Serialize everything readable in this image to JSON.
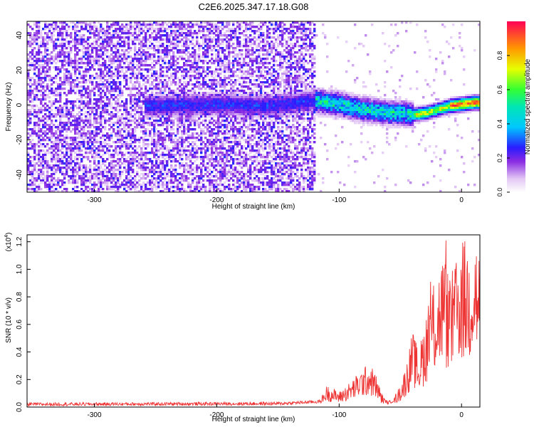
{
  "title": "C2E6.2025.347.17.18.G08",
  "chart_data": [
    {
      "type": "heatmap",
      "xlabel": "Height of straight line (km)",
      "ylabel": "Frequency (Hz)",
      "xlim": [
        -355,
        15
      ],
      "ylim": [
        -50,
        48
      ],
      "xticks": [
        -300,
        -200,
        -100,
        0
      ],
      "yticks": [
        -40,
        -20,
        0,
        20,
        40
      ],
      "colorbar": {
        "label": "Normalized spectral amplitude",
        "range": [
          0,
          1
        ],
        "ticks": [
          "0.0",
          "0.2",
          "0.4",
          "0.6",
          "0.8"
        ]
      },
      "ridge": {
        "x": [
          -250,
          -200,
          -160,
          -120,
          -110,
          -100,
          -90,
          -80,
          -70,
          -60,
          -50,
          -40,
          -30,
          -20,
          -10,
          0,
          10
        ],
        "y": [
          0,
          1,
          0,
          3,
          2,
          1,
          -1,
          -2,
          -3,
          -4,
          -4,
          -5,
          -4,
          -2,
          0,
          1,
          2
        ]
      }
    },
    {
      "type": "line",
      "xlabel": "Height of straight line (km)",
      "ylabel": "SNR (10 * v/v)",
      "scale_label": "(x10",
      "scale_exp": "4",
      "xlim": [
        -355,
        15
      ],
      "ylim": [
        0,
        1.25
      ],
      "xticks": [
        -300,
        -200,
        -100,
        0
      ],
      "yticks": [
        "0.0",
        "0.2",
        "0.4",
        "0.6",
        "0.8",
        "1.0",
        "1.2"
      ],
      "series": [
        {
          "color": "#ee3333",
          "x": [
            -355,
            -150,
            -115,
            -110,
            -100,
            -90,
            -80,
            -75,
            -70,
            -65,
            -60,
            -55,
            -50,
            -45,
            -40,
            -35,
            -30,
            -25,
            -20,
            -15,
            -10,
            -5,
            0,
            5,
            10,
            15
          ],
          "y": [
            0.02,
            0.025,
            0.04,
            0.1,
            0.07,
            0.12,
            0.18,
            0.2,
            0.15,
            0.06,
            0.03,
            0.05,
            0.1,
            0.2,
            0.35,
            0.25,
            0.4,
            0.55,
            0.6,
            0.72,
            0.6,
            0.65,
            0.78,
            0.75,
            0.85,
            0.7
          ]
        }
      ]
    }
  ]
}
